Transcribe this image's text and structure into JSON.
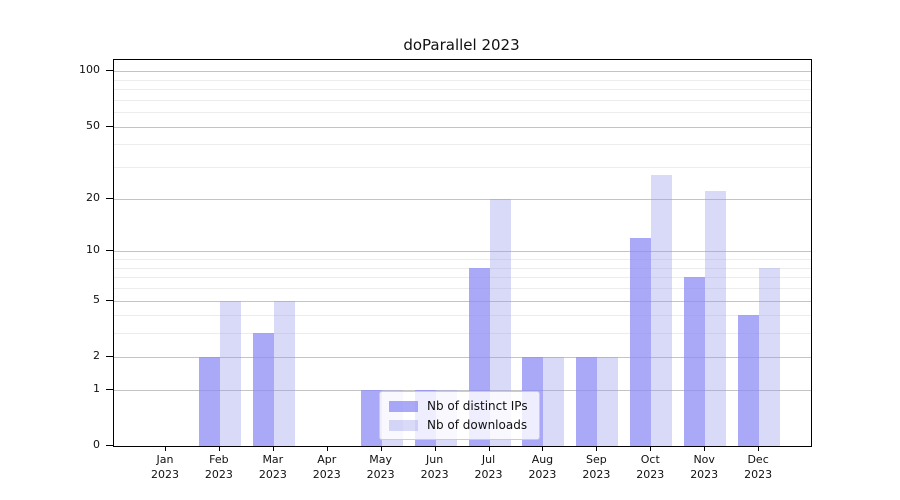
{
  "title": "doParallel 2023",
  "legend": {
    "items": [
      {
        "label": "Nb of distinct IPs"
      },
      {
        "label": "Nb of downloads"
      }
    ]
  },
  "chart_data": {
    "type": "bar",
    "title": "doParallel 2023",
    "xlabel": "",
    "ylabel": "",
    "categories": [
      "Jan 2023",
      "Feb 2023",
      "Mar 2023",
      "Apr 2023",
      "May 2023",
      "Jun 2023",
      "Jul 2023",
      "Aug 2023",
      "Sep 2023",
      "Oct 2023",
      "Nov 2023",
      "Dec 2023"
    ],
    "series": [
      {
        "name": "Nb of distinct IPs",
        "color": "rgba(140,140,245,0.75)",
        "values": [
          0,
          2,
          3,
          0,
          1,
          1,
          8,
          2,
          2,
          12,
          7,
          4
        ]
      },
      {
        "name": "Nb of downloads",
        "color": "rgba(150,150,235,0.36)",
        "values": [
          0,
          5,
          5,
          0,
          1,
          1,
          20,
          2,
          2,
          27,
          22,
          8
        ]
      }
    ],
    "yscale": "log1p",
    "yticks": [
      0,
      1,
      2,
      5,
      10,
      20,
      50,
      100
    ],
    "minor_yticks": [
      3,
      4,
      6,
      7,
      8,
      9,
      30,
      40,
      60,
      70,
      80,
      90
    ],
    "ylim": [
      0,
      115
    ],
    "grid": "horizontal",
    "grid_major_color": "#c4c4c4",
    "grid_minor_color": "#ececec",
    "axis_color": "#000000",
    "legend_position": "lower-center-inside"
  }
}
